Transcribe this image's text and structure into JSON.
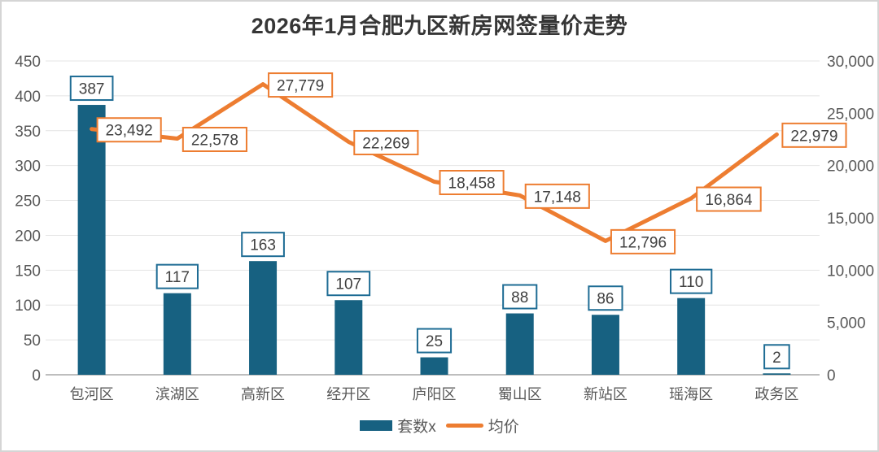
{
  "chart_data": {
    "type": "combo-bar-line",
    "title": "2026年1月合肥九区新房网签量价走势",
    "categories": [
      "包河区",
      "滨湖区",
      "高新区",
      "经开区",
      "庐阳区",
      "蜀山区",
      "新站区",
      "瑶海区",
      "政务区"
    ],
    "series": [
      {
        "name": "套数x",
        "type": "bar",
        "axis": "left",
        "color": "#176181",
        "label_border_color": "#1E6C94",
        "values": [
          387,
          117,
          163,
          107,
          25,
          88,
          86,
          110,
          2
        ],
        "labels": [
          "387",
          "117",
          "163",
          "107",
          "25",
          "88",
          "86",
          "110",
          "2"
        ]
      },
      {
        "name": "均价",
        "type": "line",
        "axis": "right",
        "color": "#ED7D31",
        "label_border_color": "#ED7D31",
        "values": [
          23492,
          22578,
          27779,
          22269,
          18458,
          17148,
          12796,
          16864,
          22979
        ],
        "labels": [
          "23,492",
          "22,578",
          "27,779",
          "22,269",
          "18,458",
          "17,148",
          "12,796",
          "16,864",
          "22,979"
        ]
      }
    ],
    "left_axis": {
      "min": 0,
      "max": 450,
      "step": 50,
      "tick_labels": [
        "0",
        "50",
        "100",
        "150",
        "200",
        "250",
        "300",
        "350",
        "400",
        "450"
      ]
    },
    "right_axis": {
      "min": 0,
      "max": 30000,
      "step": 5000,
      "tick_labels": [
        "0",
        "5,000",
        "10,000",
        "15,000",
        "20,000",
        "25,000",
        "30,000"
      ]
    },
    "grid": true,
    "legend_position": "bottom",
    "colors": {
      "grid_line": "#E4E4E4",
      "baseline": "#A8A8A8",
      "tick_text": "#595959",
      "category_text": "#595959",
      "data_label_text": "#404040",
      "title_text": "#363636",
      "frame_border": "#D5D5D5",
      "label_box_fill": "#FFFFFF"
    }
  }
}
